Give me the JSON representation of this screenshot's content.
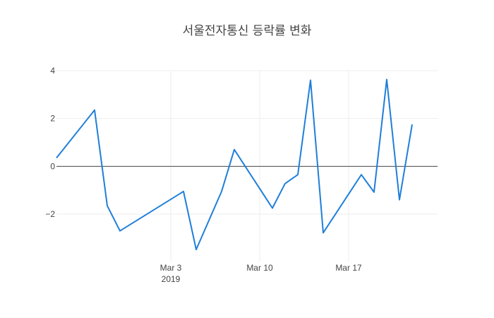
{
  "chart_data": {
    "type": "line",
    "title": "서울전자통신 등락률 변화",
    "xlabel": "",
    "ylabel": "",
    "ylim": [
      -3.98,
      4.0
    ],
    "xlim": [
      "2019-02-22",
      "2019-03-24"
    ],
    "grid": true,
    "line_color": "#1f7fd9",
    "x_ticks": [
      {
        "date": "2019-03-03",
        "label": "Mar 3",
        "sublabel": "2019"
      },
      {
        "date": "2019-03-10",
        "label": "Mar 10",
        "sublabel": ""
      },
      {
        "date": "2019-03-17",
        "label": "Mar 17",
        "sublabel": ""
      }
    ],
    "y_ticks": [
      {
        "value": 4,
        "label": "4"
      },
      {
        "value": 2,
        "label": "2"
      },
      {
        "value": 0,
        "label": "0"
      },
      {
        "value": -2,
        "label": "−2"
      }
    ],
    "series": [
      {
        "name": "",
        "x": [
          "2019-02-22",
          "2019-02-25",
          "2019-02-26",
          "2019-02-27",
          "2019-03-04",
          "2019-03-05",
          "2019-03-07",
          "2019-03-08",
          "2019-03-11",
          "2019-03-12",
          "2019-03-13",
          "2019-03-14",
          "2019-03-15",
          "2019-03-18",
          "2019-03-19",
          "2019-03-20",
          "2019-03-21",
          "2019-03-22"
        ],
        "y": [
          0.35,
          2.35,
          -1.65,
          -2.7,
          -1.05,
          -3.48,
          -1.05,
          0.7,
          -1.75,
          -0.72,
          -0.35,
          3.6,
          -2.78,
          -0.35,
          -1.08,
          3.63,
          -1.4,
          1.75
        ]
      }
    ]
  }
}
